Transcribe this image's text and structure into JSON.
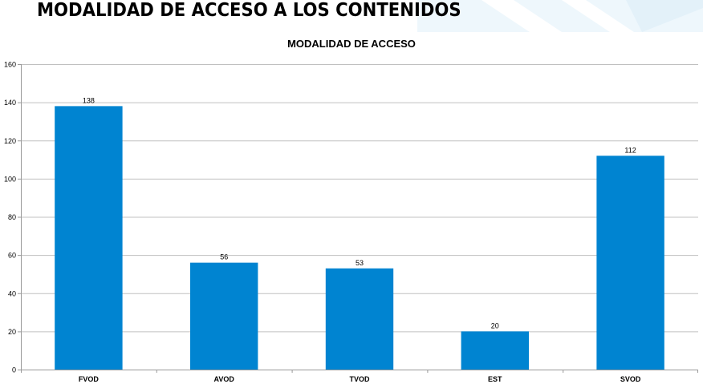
{
  "header": {
    "title": "MODALIDAD DE ACCESO A LOS CONTENIDOS"
  },
  "chart_data": {
    "type": "bar",
    "title": "MODALIDAD DE ACCESO",
    "categories": [
      "FVOD",
      "AVOD",
      "TVOD",
      "EST",
      "SVOD"
    ],
    "values": [
      138,
      56,
      53,
      20,
      112
    ],
    "data_labels": [
      "138",
      "56",
      "53",
      "20",
      "112"
    ],
    "y_ticks": [
      0,
      20,
      40,
      60,
      80,
      100,
      120,
      140,
      160
    ],
    "ylim": [
      0,
      160
    ],
    "xlabel": "",
    "ylabel": "",
    "grid": true,
    "legend": "none",
    "bar_color": "#0084d1",
    "grid_color": "#c0c0c0"
  },
  "colors": {
    "decoration": "#e6f3fa"
  }
}
